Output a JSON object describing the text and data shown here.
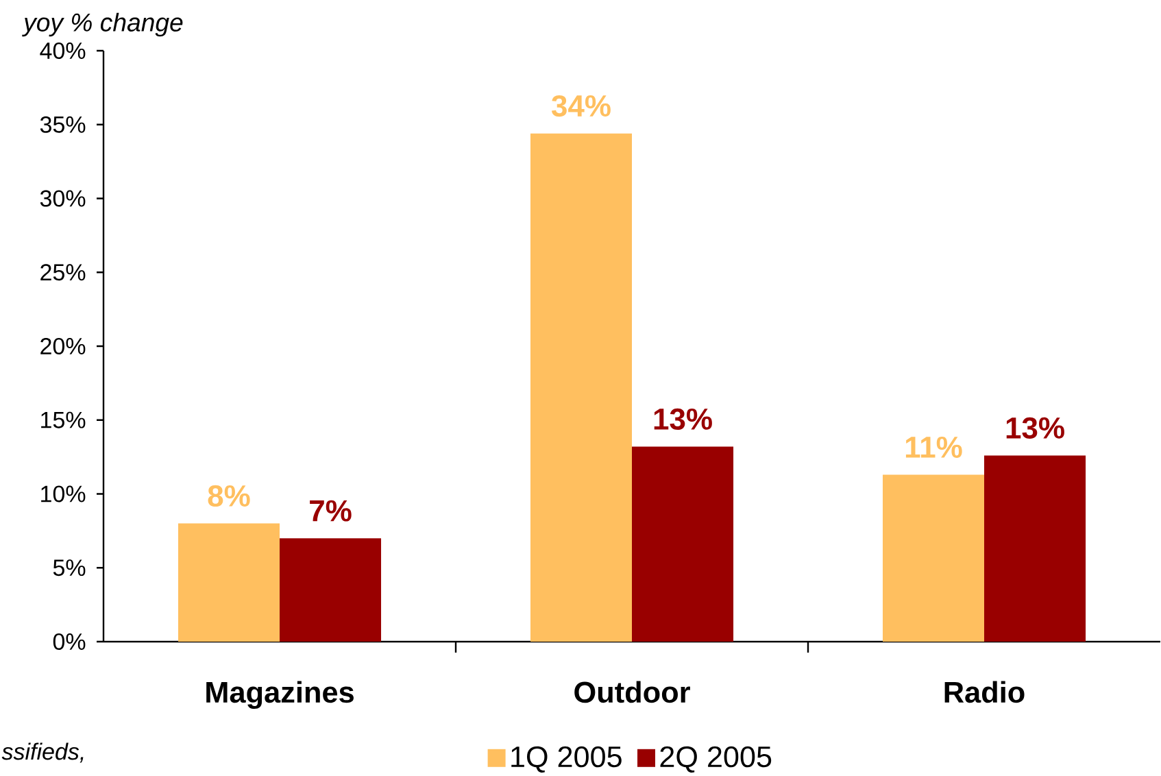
{
  "chart_data": {
    "type": "bar",
    "categories": [
      "Magazines",
      "Outdoor",
      "Radio"
    ],
    "series": [
      {
        "name": "1Q 2005",
        "color": "#ffbf5f",
        "values": [
          8,
          34.4,
          11.3
        ],
        "value_labels": [
          "8%",
          "34%",
          "11%"
        ]
      },
      {
        "name": "2Q 2005",
        "color": "#990000",
        "values": [
          7,
          13.2,
          12.6
        ],
        "value_labels": [
          "7%",
          "13%",
          "13%"
        ]
      }
    ],
    "ylabel": "yoy % change",
    "ylim": [
      0,
      40
    ],
    "yticks": [
      {
        "value": 0,
        "label": "0%"
      },
      {
        "value": 5,
        "label": "5%"
      },
      {
        "value": 10,
        "label": "10%"
      },
      {
        "value": 15,
        "label": "15%"
      },
      {
        "value": 20,
        "label": "20%"
      },
      {
        "value": 25,
        "label": "25%"
      },
      {
        "value": 30,
        "label": "30%"
      },
      {
        "value": 35,
        "label": "35%"
      },
      {
        "value": 40,
        "label": "40%"
      }
    ],
    "legend": "bottom",
    "annotations": [
      "ssifieds,"
    ]
  }
}
